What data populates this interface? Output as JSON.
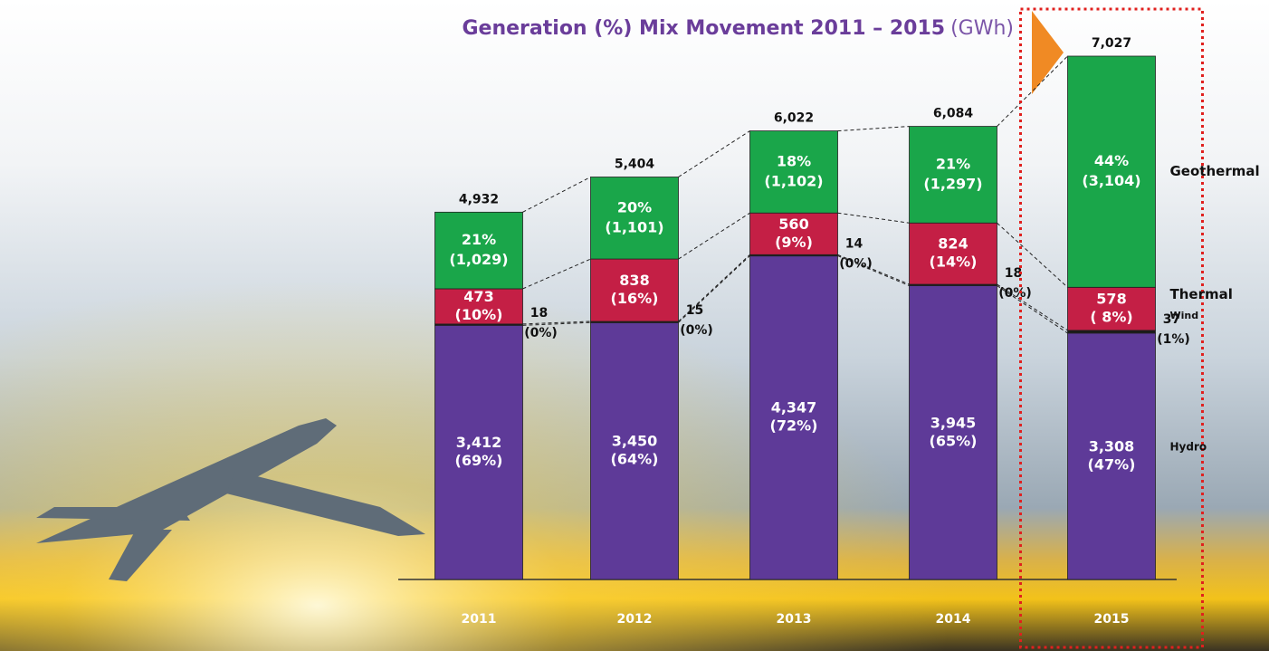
{
  "chart_data": {
    "type": "stacked-bar",
    "title": "Generation (%) Mix Movement 2011 – 2015",
    "unit": "(GWh)",
    "categories": [
      "2011",
      "2012",
      "2013",
      "2014",
      "2015"
    ],
    "series": [
      {
        "name": "Hydro",
        "color": "#5e3a98",
        "values": [
          3412,
          3450,
          4347,
          3945,
          3308
        ],
        "value_labels": [
          "3,412",
          "3,450",
          "4,347",
          "3,945",
          "3,308"
        ],
        "share_labels": [
          "(69%)",
          "(64%)",
          "(72%)",
          "(65%)",
          "(47%)"
        ]
      },
      {
        "name": "Wind",
        "color": "#1a1a1a",
        "values": [
          18,
          15,
          14,
          18,
          37
        ],
        "value_labels": [
          "18",
          "15",
          "14",
          "18",
          "37"
        ],
        "share_labels": [
          "(0%)",
          "(0%)",
          "(0%)",
          "(0%)",
          "(1%)"
        ]
      },
      {
        "name": "Thermal",
        "color": "#c41f45",
        "values": [
          473,
          838,
          560,
          824,
          578
        ],
        "value_labels": [
          "473",
          "838",
          "560",
          "824",
          "578"
        ],
        "share_labels": [
          "(10%)",
          "(16%)",
          "(9%)",
          "(14%)",
          "( 8%)"
        ]
      },
      {
        "name": "Geothermal",
        "color": "#1aa64a",
        "values": [
          1029,
          1101,
          1102,
          1297,
          3104
        ],
        "value_labels": [
          "(1,029)",
          "(1,101)",
          "(1,102)",
          "(1,297)",
          "(3,104)"
        ],
        "share_labels": [
          "21%",
          "20%",
          "18%",
          "21%",
          "44%"
        ]
      }
    ],
    "totals": [
      4932,
      5404,
      6022,
      6084,
      7027
    ],
    "total_labels": [
      "4,932",
      "5,404",
      "6,022",
      "6,084",
      "7,027"
    ],
    "ylim": [
      0,
      7027
    ],
    "highlight_category": "2015"
  }
}
